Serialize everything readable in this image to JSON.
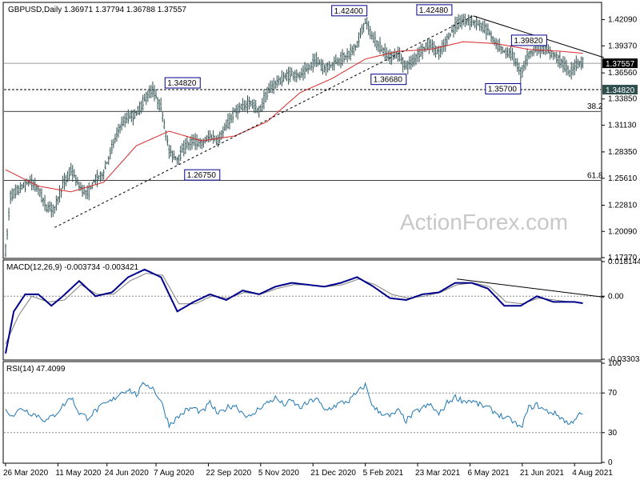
{
  "chart_data": [
    {
      "type": "candlestick",
      "panel": "price",
      "title": "GBPUSD,Daily  1.36971 1.37794 1.36788 1.37557",
      "symbol": "GBPUSD",
      "timeframe": "Daily",
      "ohlc_header": {
        "open": "1.36971",
        "high": "1.37794",
        "low": "1.36788",
        "close": "1.37557"
      },
      "ylim": [
        1.1737,
        1.438
      ],
      "yticks": [
        "1.42090",
        "1.39370",
        "1.36560",
        "1.33850",
        "1.31130",
        "1.28350",
        "1.25610",
        "1.22810",
        "1.20090",
        "1.17370"
      ],
      "current_price_label": "1.37557",
      "level_label": "1.34820",
      "watermark": "ActionForex.com",
      "xticks": [
        "26 Mar 2020",
        "11 May 2020",
        "24 Jun 2020",
        "7 Aug 2020",
        "22 Sep 2020",
        "5 Nov 2020",
        "21 Dec 2020",
        "5 Feb 2021",
        "23 Mar 2021",
        "6 May 2021",
        "21 Jun 2021",
        "4 Aug 2021"
      ],
      "xtick_index": [
        0,
        32,
        62,
        92,
        124,
        156,
        188,
        220,
        252,
        284,
        316,
        348
      ],
      "annotations": [
        {
          "label": "1.42400",
          "bar": 220,
          "price": 1.424
        },
        {
          "label": "1.42480",
          "bar": 272,
          "price": 1.4248
        },
        {
          "label": "1.39820",
          "bar": 328,
          "price": 1.3982
        },
        {
          "label": "1.36680",
          "bar": 246,
          "price": 1.3668
        },
        {
          "label": "1.35700",
          "bar": 316,
          "price": 1.357
        },
        {
          "label": "1.34820",
          "bar": 120,
          "price": 1.3482
        },
        {
          "label": "1.26750",
          "bar": 132,
          "price": 1.2675
        }
      ],
      "fib_levels": [
        {
          "label": "38.2",
          "price": 1.3256
        },
        {
          "label": "61.8",
          "price": 1.254
        }
      ],
      "support_level": 1.3482,
      "current_price": 1.37557,
      "trendlines": [
        {
          "from": {
            "bar": 30,
            "price": 1.205
          },
          "to": {
            "bar": 286,
            "price": 1.4248
          },
          "style": "dashed"
        },
        {
          "from": {
            "bar": 286,
            "price": 1.4248
          },
          "to": {
            "bar": 366,
            "price": 1.3815
          },
          "style": "solid"
        }
      ],
      "series_keypoints": [
        [
          0,
          1.18
        ],
        [
          3,
          1.238
        ],
        [
          10,
          1.247
        ],
        [
          15,
          1.253
        ],
        [
          20,
          1.245
        ],
        [
          25,
          1.226
        ],
        [
          30,
          1.225
        ],
        [
          35,
          1.249
        ],
        [
          40,
          1.265
        ],
        [
          45,
          1.248
        ],
        [
          50,
          1.24
        ],
        [
          55,
          1.255
        ],
        [
          60,
          1.262
        ],
        [
          65,
          1.288
        ],
        [
          70,
          1.31
        ],
        [
          75,
          1.32
        ],
        [
          80,
          1.323
        ],
        [
          85,
          1.338
        ],
        [
          90,
          1.348
        ],
        [
          95,
          1.33
        ],
        [
          100,
          1.285
        ],
        [
          105,
          1.276
        ],
        [
          110,
          1.29
        ],
        [
          115,
          1.295
        ],
        [
          120,
          1.292
        ],
        [
          125,
          1.3
        ],
        [
          130,
          1.295
        ],
        [
          135,
          1.31
        ],
        [
          140,
          1.325
        ],
        [
          145,
          1.33
        ],
        [
          150,
          1.335
        ],
        [
          155,
          1.325
        ],
        [
          160,
          1.345
        ],
        [
          165,
          1.355
        ],
        [
          170,
          1.36
        ],
        [
          175,
          1.365
        ],
        [
          180,
          1.362
        ],
        [
          185,
          1.37
        ],
        [
          190,
          1.38
        ],
        [
          195,
          1.37
        ],
        [
          200,
          1.375
        ],
        [
          205,
          1.38
        ],
        [
          210,
          1.385
        ],
        [
          215,
          1.395
        ],
        [
          220,
          1.42
        ],
        [
          225,
          1.4
        ],
        [
          230,
          1.39
        ],
        [
          235,
          1.382
        ],
        [
          240,
          1.385
        ],
        [
          245,
          1.372
        ],
        [
          250,
          1.38
        ],
        [
          255,
          1.39
        ],
        [
          260,
          1.395
        ],
        [
          265,
          1.385
        ],
        [
          270,
          1.4
        ],
        [
          275,
          1.415
        ],
        [
          280,
          1.42
        ],
        [
          285,
          1.42
        ],
        [
          290,
          1.415
        ],
        [
          295,
          1.41
        ],
        [
          300,
          1.395
        ],
        [
          305,
          1.388
        ],
        [
          310,
          1.385
        ],
        [
          315,
          1.365
        ],
        [
          320,
          1.385
        ],
        [
          325,
          1.392
        ],
        [
          330,
          1.39
        ],
        [
          335,
          1.385
        ],
        [
          340,
          1.378
        ],
        [
          345,
          1.365
        ],
        [
          350,
          1.377
        ],
        [
          353,
          1.3756
        ]
      ],
      "ma_keypoints": [
        [
          0,
          1.265
        ],
        [
          20,
          1.248
        ],
        [
          40,
          1.242
        ],
        [
          60,
          1.252
        ],
        [
          80,
          1.29
        ],
        [
          100,
          1.305
        ],
        [
          120,
          1.295
        ],
        [
          140,
          1.3
        ],
        [
          160,
          1.315
        ],
        [
          180,
          1.345
        ],
        [
          200,
          1.36
        ],
        [
          220,
          1.38
        ],
        [
          240,
          1.388
        ],
        [
          260,
          1.39
        ],
        [
          280,
          1.398
        ],
        [
          300,
          1.396
        ],
        [
          320,
          1.39
        ],
        [
          340,
          1.388
        ],
        [
          353,
          1.386
        ]
      ],
      "series_name": ""
    },
    {
      "type": "line",
      "panel": "macd",
      "title": "MACD(12,26,9) -0.003734 -0.003421",
      "ylim": [
        -0.033034,
        0.018144
      ],
      "yticks": [
        "0.018144",
        "0.00",
        "-0.033034"
      ],
      "macd_keypoints": [
        [
          0,
          -0.03
        ],
        [
          5,
          -0.008
        ],
        [
          12,
          0.001
        ],
        [
          20,
          0.001
        ],
        [
          28,
          -0.005
        ],
        [
          35,
          0.0
        ],
        [
          45,
          0.008
        ],
        [
          55,
          0.0
        ],
        [
          65,
          0.002
        ],
        [
          75,
          0.01
        ],
        [
          85,
          0.014
        ],
        [
          95,
          0.01
        ],
        [
          105,
          -0.008
        ],
        [
          115,
          -0.003
        ],
        [
          125,
          0.001
        ],
        [
          135,
          -0.002
        ],
        [
          145,
          0.003
        ],
        [
          155,
          0.001
        ],
        [
          165,
          0.005
        ],
        [
          175,
          0.007
        ],
        [
          185,
          0.006
        ],
        [
          195,
          0.005
        ],
        [
          205,
          0.007
        ],
        [
          215,
          0.01
        ],
        [
          225,
          0.005
        ],
        [
          235,
          -0.001
        ],
        [
          245,
          -0.002
        ],
        [
          255,
          0.001
        ],
        [
          265,
          0.002
        ],
        [
          275,
          0.007
        ],
        [
          285,
          0.007
        ],
        [
          295,
          0.004
        ],
        [
          305,
          -0.005
        ],
        [
          315,
          -0.005
        ],
        [
          325,
          0.0
        ],
        [
          335,
          -0.003
        ],
        [
          340,
          -0.003
        ],
        [
          348,
          -0.003
        ],
        [
          353,
          -0.0037
        ]
      ],
      "signal_keypoints": [
        [
          0,
          -0.025
        ],
        [
          8,
          -0.01
        ],
        [
          16,
          0.0
        ],
        [
          26,
          -0.003
        ],
        [
          36,
          -0.002
        ],
        [
          46,
          0.006
        ],
        [
          56,
          0.001
        ],
        [
          66,
          0.001
        ],
        [
          76,
          0.008
        ],
        [
          86,
          0.012
        ],
        [
          96,
          0.011
        ],
        [
          106,
          -0.004
        ],
        [
          116,
          -0.004
        ],
        [
          126,
          0.0
        ],
        [
          136,
          -0.001
        ],
        [
          146,
          0.002
        ],
        [
          156,
          0.001
        ],
        [
          166,
          0.004
        ],
        [
          176,
          0.006
        ],
        [
          186,
          0.006
        ],
        [
          196,
          0.005
        ],
        [
          206,
          0.006
        ],
        [
          216,
          0.009
        ],
        [
          226,
          0.006
        ],
        [
          236,
          0.001
        ],
        [
          246,
          -0.001
        ],
        [
          256,
          0.0
        ],
        [
          266,
          0.002
        ],
        [
          276,
          0.006
        ],
        [
          286,
          0.007
        ],
        [
          296,
          0.005
        ],
        [
          306,
          -0.003
        ],
        [
          316,
          -0.004
        ],
        [
          326,
          -0.001
        ],
        [
          336,
          -0.002
        ],
        [
          346,
          -0.003
        ],
        [
          353,
          -0.0034
        ]
      ],
      "trendline": {
        "from": {
          "bar": 276,
          "value": 0.009
        },
        "to": {
          "bar": 366,
          "value": -0.0005
        }
      },
      "macd_name": "",
      "signal_name": ""
    },
    {
      "type": "line",
      "panel": "rsi",
      "title": "RSI(14) 47.4099",
      "ylim": [
        0,
        100
      ],
      "yticks": [
        "100",
        "70",
        "30",
        "0"
      ],
      "levels": [
        70,
        30
      ],
      "rsi_keypoints": [
        [
          0,
          52
        ],
        [
          5,
          48
        ],
        [
          10,
          55
        ],
        [
          15,
          50
        ],
        [
          20,
          47
        ],
        [
          25,
          42
        ],
        [
          30,
          48
        ],
        [
          35,
          57
        ],
        [
          40,
          66
        ],
        [
          45,
          50
        ],
        [
          50,
          45
        ],
        [
          55,
          52
        ],
        [
          60,
          58
        ],
        [
          65,
          62
        ],
        [
          70,
          70
        ],
        [
          75,
          74
        ],
        [
          80,
          68
        ],
        [
          85,
          80
        ],
        [
          90,
          75
        ],
        [
          95,
          62
        ],
        [
          100,
          38
        ],
        [
          105,
          45
        ],
        [
          110,
          52
        ],
        [
          115,
          55
        ],
        [
          120,
          50
        ],
        [
          125,
          60
        ],
        [
          130,
          48
        ],
        [
          135,
          55
        ],
        [
          140,
          58
        ],
        [
          145,
          50
        ],
        [
          150,
          45
        ],
        [
          155,
          55
        ],
        [
          160,
          60
        ],
        [
          165,
          65
        ],
        [
          170,
          58
        ],
        [
          175,
          62
        ],
        [
          180,
          55
        ],
        [
          185,
          60
        ],
        [
          190,
          65
        ],
        [
          195,
          52
        ],
        [
          200,
          56
        ],
        [
          205,
          60
        ],
        [
          210,
          62
        ],
        [
          215,
          70
        ],
        [
          220,
          78
        ],
        [
          225,
          55
        ],
        [
          230,
          50
        ],
        [
          235,
          46
        ],
        [
          240,
          52
        ],
        [
          245,
          42
        ],
        [
          250,
          50
        ],
        [
          255,
          55
        ],
        [
          260,
          58
        ],
        [
          265,
          48
        ],
        [
          270,
          60
        ],
        [
          275,
          66
        ],
        [
          280,
          62
        ],
        [
          285,
          62
        ],
        [
          290,
          58
        ],
        [
          295,
          55
        ],
        [
          300,
          50
        ],
        [
          305,
          45
        ],
        [
          310,
          42
        ],
        [
          315,
          34
        ],
        [
          320,
          55
        ],
        [
          325,
          58
        ],
        [
          330,
          52
        ],
        [
          335,
          50
        ],
        [
          340,
          45
        ],
        [
          345,
          38
        ],
        [
          350,
          48
        ],
        [
          353,
          47.4
        ]
      ],
      "series_name": ""
    }
  ],
  "style": {
    "candle_color": "#2f4f4f",
    "ma_color": "#d62728",
    "macd_color": "#00008b",
    "signal_color": "#7f7f7f",
    "rsi_color": "#1f77b4",
    "grid_color": "#000000"
  }
}
